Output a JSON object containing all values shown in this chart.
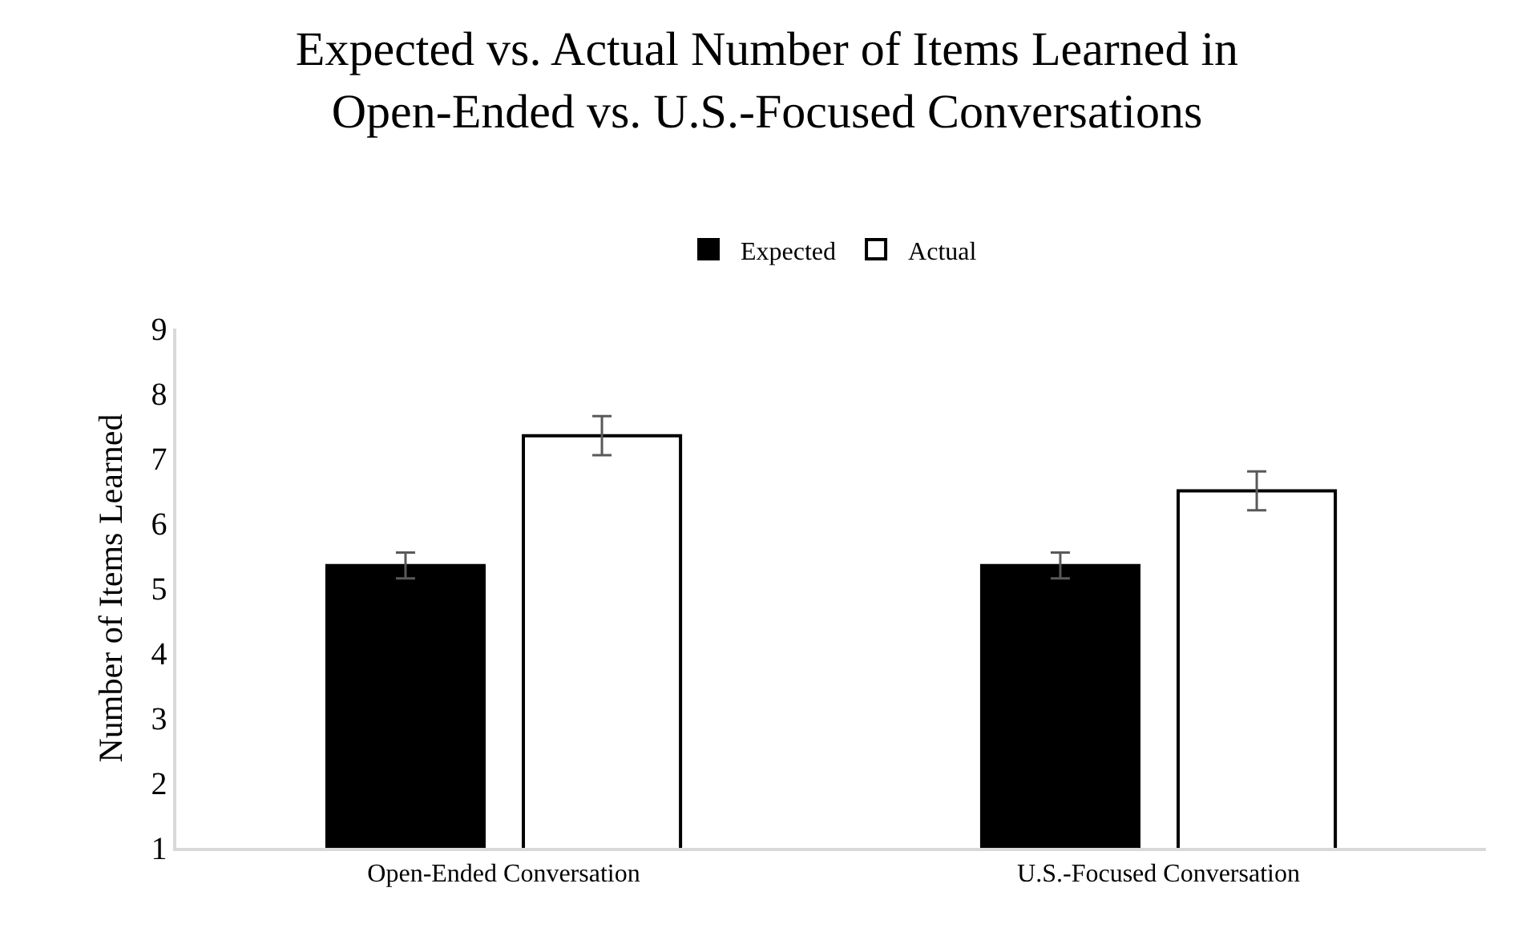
{
  "chart_data": {
    "type": "bar",
    "title": "Expected vs. Actual Number of Items Learned in Open-Ended vs. U.S.-Focused Conversations",
    "ylabel": "Number of Items Learned",
    "categories": [
      "Open-Ended Conversation",
      "U.S.-Focused Conversation"
    ],
    "series": [
      {
        "name": "Expected",
        "color": "#000000",
        "values": [
          5.35,
          5.35
        ],
        "errors": [
          0.2,
          0.2
        ]
      },
      {
        "name": "Actual",
        "color": "#ffffff",
        "values": [
          7.35,
          6.5
        ],
        "errors": [
          0.3,
          0.3
        ]
      }
    ],
    "ylim": [
      1,
      9
    ],
    "yticks": [
      1,
      2,
      3,
      4,
      5,
      6,
      7,
      8,
      9
    ],
    "grid": false,
    "legend": "top"
  }
}
